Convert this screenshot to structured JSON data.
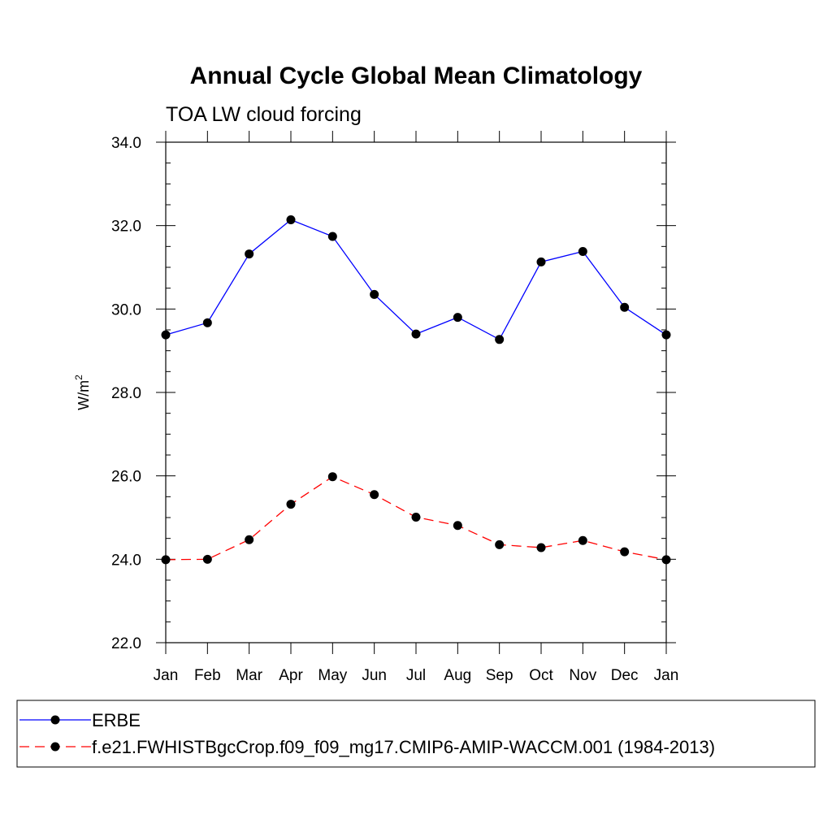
{
  "chart_data": {
    "type": "line",
    "title": "Annual Cycle Global Mean Climatology",
    "subtitle": "TOA LW cloud forcing",
    "xlabel": "",
    "ylabel": "W/m",
    "ylabel_superscript": "2",
    "categories": [
      "Jan",
      "Feb",
      "Mar",
      "Apr",
      "May",
      "Jun",
      "Jul",
      "Aug",
      "Sep",
      "Oct",
      "Nov",
      "Dec",
      "Jan"
    ],
    "ylim": [
      22.0,
      34.0
    ],
    "yticks": [
      "22.0",
      "24.0",
      "26.0",
      "28.0",
      "30.0",
      "32.0",
      "34.0"
    ],
    "series": [
      {
        "name": "ERBE",
        "color": "#0000ff",
        "dash": "solid",
        "values": [
          29.38,
          29.67,
          31.32,
          32.14,
          31.74,
          30.35,
          29.4,
          29.8,
          29.27,
          31.13,
          31.38,
          30.04,
          29.38
        ]
      },
      {
        "name": "f.e21.FWHISTBgcCrop.f09_f09_mg17.CMIP6-AMIP-WACCM.001 (1984-2013)",
        "color": "#ff0000",
        "dash": "dashed",
        "values": [
          23.99,
          24.0,
          24.47,
          25.32,
          25.98,
          25.55,
          25.01,
          24.81,
          24.35,
          24.28,
          24.45,
          24.18,
          23.99
        ]
      }
    ],
    "legend_position": "bottom"
  }
}
